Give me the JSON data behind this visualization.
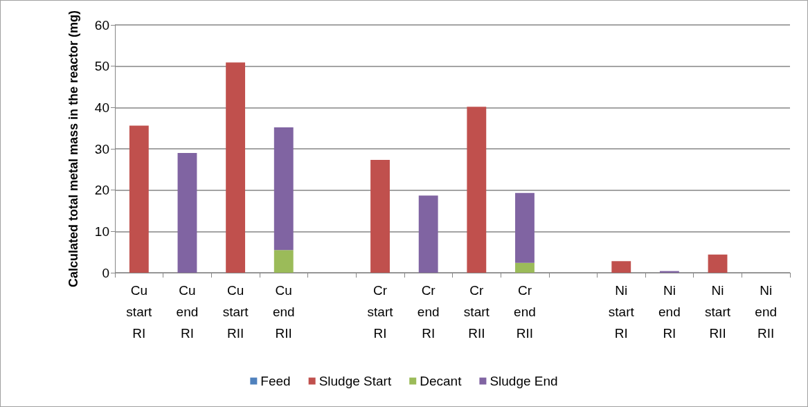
{
  "chart_data": {
    "type": "bar",
    "stacked": true,
    "ylabel": "Calculated total metal mass in the reactor (mg)",
    "categories": [
      "Cu start RI",
      "Cu end RI",
      "Cu start RII",
      "Cu end RII",
      null,
      "Cr start RI",
      "Cr end RI",
      "Cr start RII",
      "Cr end RII",
      null,
      "Ni start RI",
      "Ni end RI",
      "Ni start RII",
      "Ni end RII"
    ],
    "series": [
      {
        "name": "Feed",
        "color": "#4f81bd",
        "values": [
          null,
          null,
          null,
          null,
          null,
          null,
          null,
          null,
          null,
          null,
          null,
          null,
          null,
          null
        ]
      },
      {
        "name": "Sludge Start",
        "color": "#c0504d",
        "values": [
          35.6,
          null,
          50.9,
          null,
          null,
          27.3,
          null,
          40.2,
          null,
          null,
          2.8,
          null,
          4.4,
          null
        ]
      },
      {
        "name": "Decant",
        "color": "#9bbb59",
        "values": [
          null,
          null,
          null,
          5.5,
          null,
          null,
          null,
          null,
          2.4,
          null,
          null,
          null,
          null,
          null
        ]
      },
      {
        "name": "Sludge End",
        "color": "#8064a2",
        "values": [
          null,
          29.0,
          null,
          29.7,
          null,
          null,
          18.7,
          null,
          16.9,
          null,
          null,
          0.4,
          null,
          null
        ]
      }
    ],
    "ylim": [
      0,
      60
    ],
    "yticks": [
      0,
      10,
      20,
      30,
      40,
      50,
      60
    ],
    "grid": "y",
    "legend": "bottom"
  }
}
